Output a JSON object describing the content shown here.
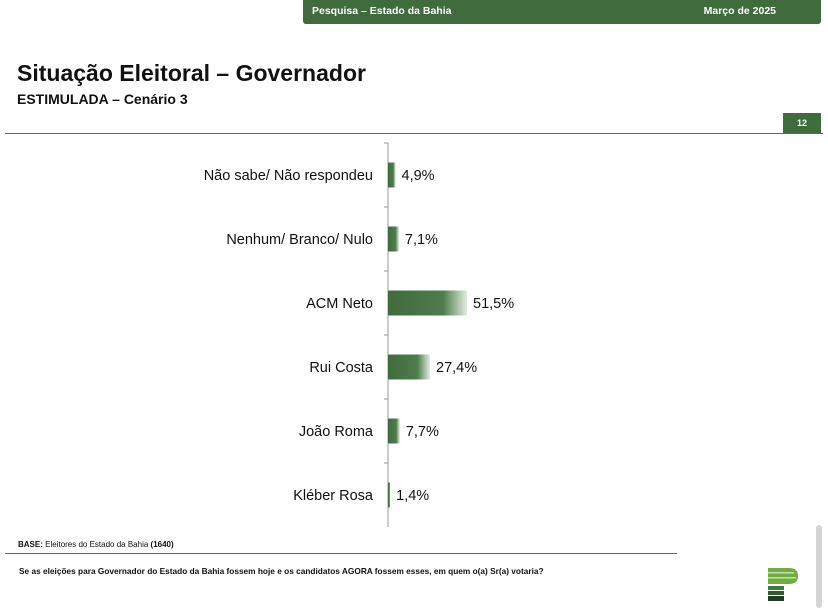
{
  "header": {
    "survey_label": "Pesquisa – Estado da Bahia",
    "date_label": "Março de 2025"
  },
  "slide": {
    "title": "Situação Eleitoral – Governador",
    "subtitle": "ESTIMULADA – Cenário 3",
    "page_number": "12"
  },
  "chart_data": {
    "type": "bar",
    "orientation": "horizontal",
    "categories": [
      "Não sabe/ Não respondeu",
      "Nenhum/ Branco/ Nulo",
      "ACM Neto",
      "Rui Costa",
      "João Roma",
      "Kléber Rosa"
    ],
    "values": [
      4.9,
      7.1,
      51.5,
      27.4,
      7.7,
      1.4
    ],
    "value_labels": [
      "4,9%",
      "7,1%",
      "51,5%",
      "27,4%",
      "7,7%",
      "1,4%"
    ],
    "unit": "%",
    "xlim": [
      0,
      100
    ],
    "grid": false,
    "legend": "none",
    "bar_color": "#3f6b3d"
  },
  "footer": {
    "base_label": "BASE:",
    "base_text": "Eleitores do Estado da Bahia",
    "base_count": "(1640)",
    "question": "Se as eleições para Governador do Estado da Bahia fossem hoje e os candidatos AGORA fossem esses, em quem o(a) Sr(a) votaria?"
  },
  "logo": {
    "icon": "institute-logo-icon"
  }
}
